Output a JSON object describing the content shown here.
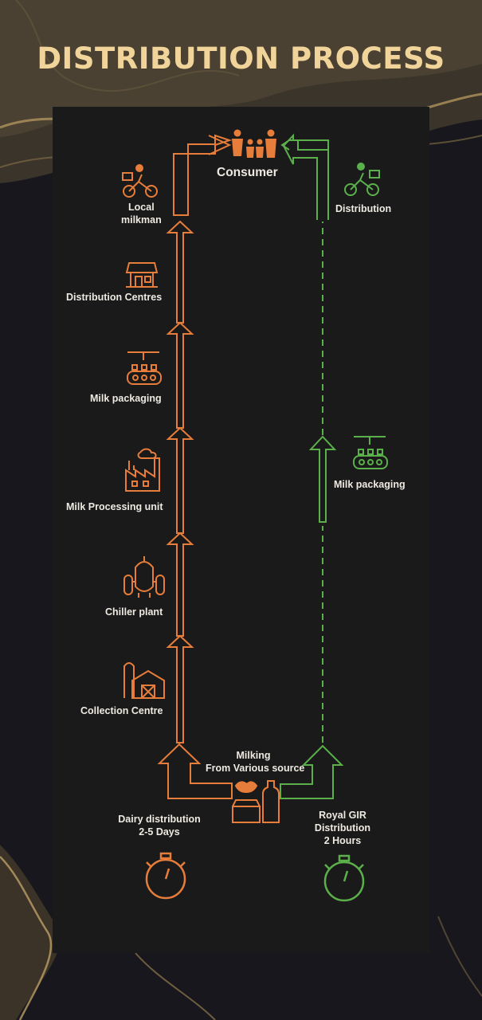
{
  "title": "DISTRIBUTION PROCESS",
  "colors": {
    "dairy": "#e77d3a",
    "royal": "#5bb04b",
    "title": "#f0d49a",
    "text": "#eeeae2"
  },
  "consumer": {
    "label": "Consumer",
    "icon": "family-icon"
  },
  "dairy_chain": [
    {
      "id": "local-milkman",
      "label_lines": [
        "Local",
        "milkman"
      ],
      "icon": "delivery-bicycle-icon"
    },
    {
      "id": "distribution-centres",
      "label": "Distribution Centres",
      "icon": "shop-icon"
    },
    {
      "id": "milk-packaging",
      "label": "Milk packaging",
      "icon": "bottling-conveyor-icon"
    },
    {
      "id": "milk-processing-unit",
      "label": "Milk Processing unit",
      "icon": "factory-icon"
    },
    {
      "id": "chiller-plant",
      "label": "Chiller plant",
      "icon": "chiller-tank-icon"
    },
    {
      "id": "collection-centre",
      "label": "Collection Centre",
      "icon": "barn-silo-icon"
    }
  ],
  "royal_chain": [
    {
      "id": "distribution",
      "label": "Distribution",
      "icon": "delivery-bicycle-icon"
    },
    {
      "id": "milk-packaging",
      "label": "Milk packaging",
      "icon": "bottling-conveyor-icon"
    }
  ],
  "milking": {
    "label_lines": [
      "Milking",
      "From Various source"
    ],
    "icon": "milking-can-icon"
  },
  "dairy_time": {
    "label_lines": [
      "Dairy distribution",
      "2-5 Days"
    ],
    "icon": "stopwatch-icon"
  },
  "royal_time": {
    "label_lines": [
      "Royal GIR",
      "Distribution",
      "2 Hours"
    ],
    "icon": "stopwatch-icon"
  }
}
